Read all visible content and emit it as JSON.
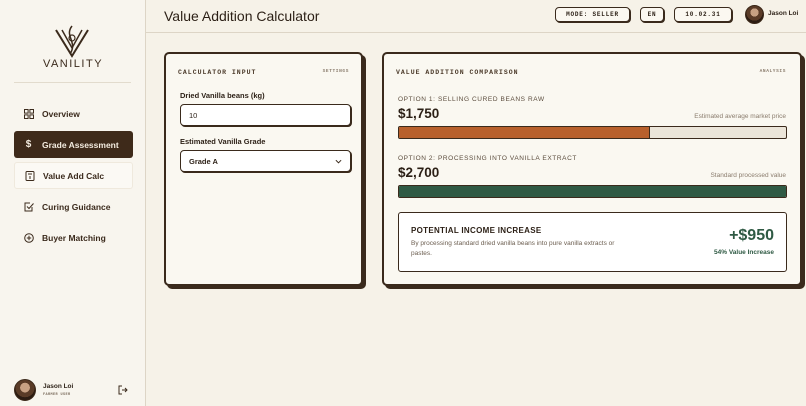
{
  "app": {
    "logo_text": "VANILITY"
  },
  "sidebar": {
    "items": [
      {
        "label": "Overview",
        "icon": "grid-icon"
      },
      {
        "label": "Grade Assessment",
        "icon": "dollar-icon"
      },
      {
        "label": "Value Add Calc",
        "icon": "calculator-icon"
      },
      {
        "label": "Curing Guidance",
        "icon": "checkbox-icon"
      },
      {
        "label": "Buyer Matching",
        "icon": "plus-circle-icon"
      }
    ],
    "user": {
      "name": "Jason Loi",
      "role": "FARMER USER"
    }
  },
  "header": {
    "title": "Value Addition Calculator",
    "mode": "MODE: SELLER",
    "language": "EN",
    "date": "10.02.31",
    "user_name": "Jason Loi"
  },
  "input_card": {
    "title": "CALCULATOR INPUT",
    "tag": "SETTINGS",
    "beans_label": "Dried Vanilla beans (kg)",
    "beans_value": "10",
    "grade_label": "Estimated Vanilla Grade",
    "grade_value": "Grade A"
  },
  "comparison_card": {
    "title": "VALUE ADDITION COMPARISON",
    "tag": "ANALYSIS",
    "option1": {
      "label": "OPTION 1: SELLING CURED BEANS RAW",
      "value": "$1,750",
      "note": "Estimated average market price",
      "fill_fraction": 0.648,
      "color": "#b8602c"
    },
    "option2": {
      "label": "OPTION 2: PROCESSING INTO VANILLA EXTRACT",
      "value": "$2,700",
      "note": "Standard processed value",
      "fill_fraction": 1.0,
      "color": "#2f5a44"
    },
    "income": {
      "title": "POTENTIAL INCOME INCREASE",
      "description": "By processing standard dried vanilla beans into pure vanilla extracts or pastes.",
      "value": "+$950",
      "percent": "54% Value Increase"
    }
  },
  "colors": {
    "accent_dark": "#3e2a1a",
    "background": "#f6f2e8",
    "orange": "#b8602c",
    "green": "#2f5a44"
  }
}
